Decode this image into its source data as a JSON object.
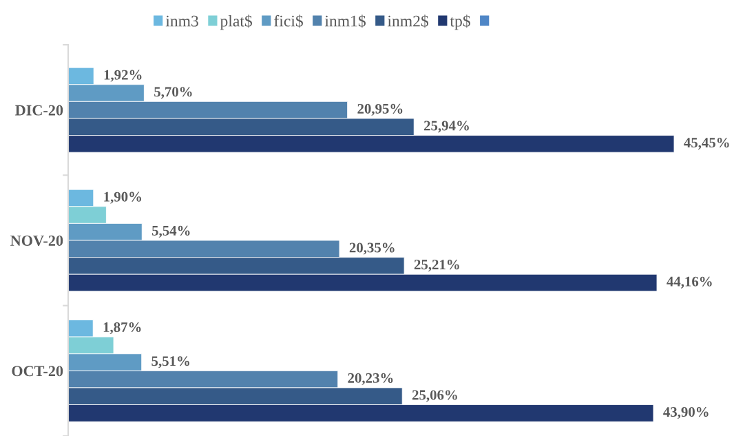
{
  "chart_data": {
    "type": "bar",
    "orientation": "horizontal",
    "categories": [
      "DIC-20",
      "NOV-20",
      "OCT-20"
    ],
    "legend": "top",
    "tick_labels": "y",
    "grid": false,
    "series": [
      {
        "name": "inm3",
        "color": "#6cb8e0",
        "values": [
          1.92,
          1.9,
          1.87
        ],
        "value_labels": [
          "1,92%",
          "1,90%",
          "1,87%"
        ]
      },
      {
        "name": "plat$",
        "color": "#7ecfd6",
        "values": [
          null,
          2.86,
          3.41
        ],
        "value_labels": [
          null,
          null,
          null
        ]
      },
      {
        "name": "fici$",
        "color": "#5f9bc4",
        "values": [
          5.7,
          5.54,
          5.51
        ],
        "value_labels": [
          "5,70%",
          "5,54%",
          "5,51%"
        ]
      },
      {
        "name": "inm1$",
        "color": "#5282ad",
        "values": [
          20.95,
          20.35,
          20.23
        ],
        "value_labels": [
          "20,95%",
          "20,35%",
          "20,23%"
        ]
      },
      {
        "name": "inm2$",
        "color": "#355a88",
        "values": [
          25.94,
          25.21,
          25.06
        ],
        "value_labels": [
          "25,94%",
          "25,21%",
          "25,06%"
        ]
      },
      {
        "name": "tp$",
        "color": "#213870",
        "values": [
          45.45,
          44.16,
          43.9
        ],
        "value_labels": [
          "45,45%",
          "44,16%",
          "43,90%"
        ]
      },
      {
        "color": "#4f86c6",
        "values": [
          null,
          null,
          null
        ]
      }
    ]
  }
}
